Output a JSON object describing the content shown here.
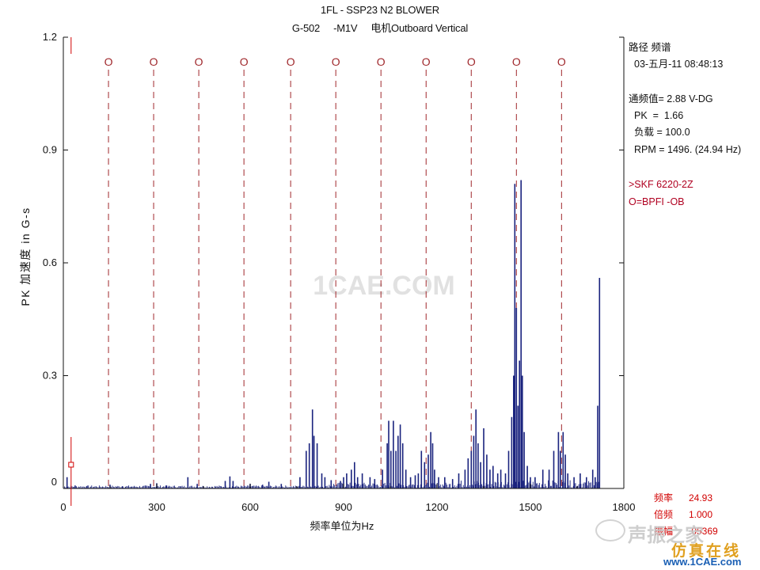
{
  "chart_data": {
    "type": "line",
    "title": "1FL  - SSP23 N2 BLOWER",
    "subtitle": "G-502     -M1V     电机Outboard Vertical",
    "xlabel": "频率单位为Hz",
    "ylabel": "PK 加速度  in G-s",
    "xlim": [
      0,
      1800
    ],
    "ylim": [
      0,
      1.2
    ],
    "x_ticks": [
      "0",
      "300",
      "600",
      "900",
      "1200",
      "1500",
      "1800"
    ],
    "y_ticks": [
      "0",
      "0.3",
      "0.6",
      "0.9",
      "1.2"
    ],
    "grid": false,
    "marker_label": "O",
    "bpfi_markers": [
      145,
      290,
      435,
      580,
      730,
      875,
      1020,
      1165,
      1310,
      1455,
      1600
    ],
    "cursor_x": 24.93,
    "series": [
      {
        "color": "#1a237e",
        "peaks": [
          [
            12,
            0.03
          ],
          [
            38,
            0.008
          ],
          [
            75,
            0.006
          ],
          [
            150,
            0.01
          ],
          [
            190,
            0.006
          ],
          [
            280,
            0.012
          ],
          [
            300,
            0.014
          ],
          [
            330,
            0.008
          ],
          [
            400,
            0.03
          ],
          [
            430,
            0.012
          ],
          [
            520,
            0.02
          ],
          [
            535,
            0.032
          ],
          [
            545,
            0.02
          ],
          [
            600,
            0.012
          ],
          [
            640,
            0.01
          ],
          [
            660,
            0.018
          ],
          [
            700,
            0.012
          ],
          [
            760,
            0.03
          ],
          [
            780,
            0.1
          ],
          [
            790,
            0.12
          ],
          [
            800,
            0.21
          ],
          [
            805,
            0.14
          ],
          [
            815,
            0.12
          ],
          [
            830,
            0.04
          ],
          [
            840,
            0.03
          ],
          [
            860,
            0.022
          ],
          [
            890,
            0.02
          ],
          [
            900,
            0.03
          ],
          [
            910,
            0.04
          ],
          [
            925,
            0.05
          ],
          [
            935,
            0.07
          ],
          [
            945,
            0.03
          ],
          [
            960,
            0.04
          ],
          [
            985,
            0.03
          ],
          [
            1000,
            0.025
          ],
          [
            1025,
            0.05
          ],
          [
            1040,
            0.12
          ],
          [
            1045,
            0.18
          ],
          [
            1052,
            0.1
          ],
          [
            1060,
            0.18
          ],
          [
            1068,
            0.1
          ],
          [
            1075,
            0.14
          ],
          [
            1082,
            0.17
          ],
          [
            1090,
            0.12
          ],
          [
            1100,
            0.05
          ],
          [
            1115,
            0.03
          ],
          [
            1130,
            0.035
          ],
          [
            1140,
            0.04
          ],
          [
            1150,
            0.1
          ],
          [
            1160,
            0.07
          ],
          [
            1172,
            0.09
          ],
          [
            1180,
            0.15
          ],
          [
            1186,
            0.12
          ],
          [
            1192,
            0.05
          ],
          [
            1205,
            0.03
          ],
          [
            1225,
            0.03
          ],
          [
            1250,
            0.025
          ],
          [
            1270,
            0.04
          ],
          [
            1290,
            0.05
          ],
          [
            1300,
            0.08
          ],
          [
            1310,
            0.1
          ],
          [
            1318,
            0.14
          ],
          [
            1325,
            0.21
          ],
          [
            1332,
            0.12
          ],
          [
            1340,
            0.07
          ],
          [
            1350,
            0.16
          ],
          [
            1360,
            0.09
          ],
          [
            1370,
            0.05
          ],
          [
            1380,
            0.06
          ],
          [
            1395,
            0.04
          ],
          [
            1405,
            0.05
          ],
          [
            1420,
            0.04
          ],
          [
            1430,
            0.1
          ],
          [
            1440,
            0.19
          ],
          [
            1446,
            0.3
          ],
          [
            1450,
            0.81
          ],
          [
            1455,
            0.48
          ],
          [
            1460,
            0.22
          ],
          [
            1465,
            0.34
          ],
          [
            1470,
            0.82
          ],
          [
            1474,
            0.3
          ],
          [
            1480,
            0.15
          ],
          [
            1490,
            0.06
          ],
          [
            1500,
            0.03
          ],
          [
            1515,
            0.03
          ],
          [
            1540,
            0.05
          ],
          [
            1560,
            0.05
          ],
          [
            1575,
            0.1
          ],
          [
            1590,
            0.15
          ],
          [
            1596,
            0.1
          ],
          [
            1605,
            0.15
          ],
          [
            1612,
            0.09
          ],
          [
            1620,
            0.04
          ],
          [
            1640,
            0.03
          ],
          [
            1660,
            0.04
          ],
          [
            1680,
            0.03
          ],
          [
            1700,
            0.05
          ],
          [
            1708,
            0.03
          ],
          [
            1716,
            0.22
          ],
          [
            1722,
            0.56
          ]
        ]
      }
    ]
  },
  "info_panel": {
    "path_label": "路径 频谱",
    "datetime": "03-五月-11 08:48:13",
    "overall": "通频值= 2.88 V-DG",
    "pk": "PK  =  1.66",
    "load": "负载 = 100.0",
    "rpm": "RPM = 1496. (24.94 Hz)",
    "bearing": ">SKF 6220-2Z",
    "fault_freq": "O=BPFI -OB"
  },
  "cursor_readout": {
    "freq_label": "频率",
    "freq_value": "24.93",
    "order_label": "倍频",
    "order_value": "1.000",
    "amp_label": "振幅",
    "amp_value": ".05369"
  },
  "watermarks": {
    "center": "1CAE.COM",
    "brand_cn": "声振之家",
    "site_cn": "仿真在线",
    "site_url": "www.1CAE.com"
  },
  "colors": {
    "spectrum": "#1a237e",
    "marker": "#a0282c",
    "readout": "#d10000"
  }
}
